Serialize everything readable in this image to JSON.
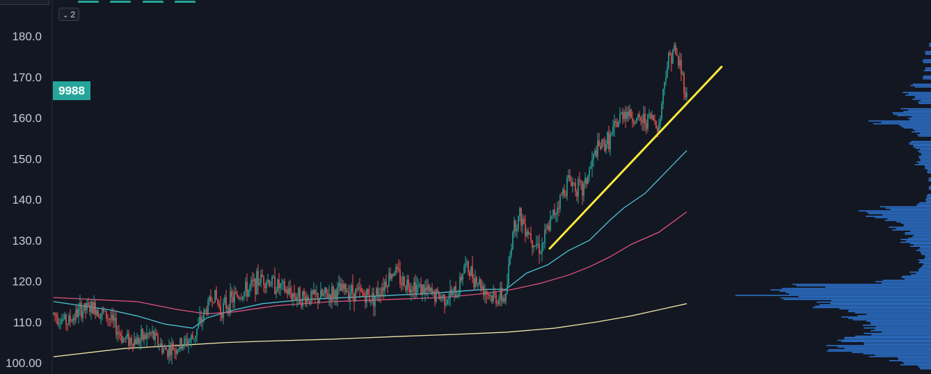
{
  "toolbar": {
    "collapse_count": "2",
    "collapse_icon": "chevron-down-icon"
  },
  "symbol_badge": {
    "label": "9988",
    "color": "#26a69a"
  },
  "chart_data": {
    "type": "line",
    "subtype": "candlestick",
    "ylim": [
      99,
      183
    ],
    "y_ticks": [
      "180.0",
      "170.0",
      "160.0",
      "150.0",
      "140.0",
      "130.0",
      "120.0",
      "110.0",
      "100.00"
    ],
    "y_tick_values": [
      180,
      170,
      160,
      150,
      140,
      130,
      120,
      110,
      100
    ],
    "grid": false,
    "background": "#131722",
    "up_color": "#26a69a",
    "down_color": "#ef5350",
    "anchors": [
      [
        0,
        112
      ],
      [
        20,
        110
      ],
      [
        40,
        113
      ],
      [
        60,
        113.5
      ],
      [
        80,
        111
      ],
      [
        100,
        106
      ],
      [
        120,
        105.5
      ],
      [
        140,
        107
      ],
      [
        160,
        103
      ],
      [
        180,
        104
      ],
      [
        200,
        106
      ],
      [
        230,
        117
      ],
      [
        240,
        113
      ],
      [
        260,
        116
      ],
      [
        280,
        118
      ],
      [
        300,
        121
      ],
      [
        320,
        119
      ],
      [
        340,
        117
      ],
      [
        360,
        116
      ],
      [
        380,
        116
      ],
      [
        400,
        117
      ],
      [
        420,
        118
      ],
      [
        440,
        117
      ],
      [
        460,
        116
      ],
      [
        490,
        123
      ],
      [
        500,
        120
      ],
      [
        520,
        119
      ],
      [
        540,
        117
      ],
      [
        560,
        116
      ],
      [
        580,
        117
      ],
      [
        590,
        124
      ],
      [
        610,
        120
      ],
      [
        630,
        116
      ],
      [
        650,
        116
      ],
      [
        660,
        133
      ],
      [
        670,
        136
      ],
      [
        690,
        130
      ],
      [
        700,
        128
      ],
      [
        720,
        137
      ],
      [
        740,
        145
      ],
      [
        760,
        142
      ],
      [
        780,
        152
      ],
      [
        800,
        155
      ],
      [
        820,
        162
      ],
      [
        840,
        159
      ],
      [
        860,
        160
      ],
      [
        870,
        158
      ],
      [
        880,
        172
      ],
      [
        890,
        177
      ],
      [
        900,
        173
      ],
      [
        910,
        165
      ]
    ],
    "series": [
      {
        "type": "ma",
        "color": "#4dc4d6",
        "points": [
          [
            0,
            115
          ],
          [
            40,
            114
          ],
          [
            80,
            113
          ],
          [
            120,
            111.5
          ],
          [
            160,
            109.5
          ],
          [
            200,
            108.5
          ],
          [
            220,
            111
          ],
          [
            260,
            113
          ],
          [
            300,
            114.5
          ],
          [
            360,
            115.5
          ],
          [
            420,
            116
          ],
          [
            480,
            116.5
          ],
          [
            540,
            117
          ],
          [
            580,
            117.5
          ],
          [
            620,
            118
          ],
          [
            650,
            118
          ],
          [
            680,
            122
          ],
          [
            710,
            124
          ],
          [
            740,
            127.5
          ],
          [
            770,
            130
          ],
          [
            800,
            135
          ],
          [
            820,
            138
          ],
          [
            850,
            141.5
          ],
          [
            870,
            145
          ],
          [
            890,
            148.5
          ],
          [
            910,
            152
          ]
        ]
      },
      {
        "type": "ma",
        "color": "#e0537e",
        "points": [
          [
            0,
            116
          ],
          [
            60,
            115.5
          ],
          [
            120,
            115
          ],
          [
            180,
            113
          ],
          [
            220,
            112
          ],
          [
            260,
            112.5
          ],
          [
            320,
            114
          ],
          [
            400,
            115
          ],
          [
            480,
            115.5
          ],
          [
            560,
            116
          ],
          [
            620,
            117
          ],
          [
            660,
            118
          ],
          [
            700,
            119.5
          ],
          [
            740,
            121.5
          ],
          [
            770,
            123.5
          ],
          [
            800,
            126
          ],
          [
            830,
            129
          ],
          [
            870,
            132
          ],
          [
            890,
            134.5
          ],
          [
            910,
            137
          ]
        ]
      },
      {
        "type": "ma",
        "color": "#f0e6a8",
        "points": [
          [
            0,
            101.5
          ],
          [
            100,
            103.5
          ],
          [
            200,
            104.5
          ],
          [
            250,
            105
          ],
          [
            300,
            105.3
          ],
          [
            400,
            105.8
          ],
          [
            500,
            106.5
          ],
          [
            580,
            107
          ],
          [
            650,
            107.5
          ],
          [
            720,
            108.5
          ],
          [
            780,
            110
          ],
          [
            830,
            111.5
          ],
          [
            870,
            113
          ],
          [
            910,
            114.5
          ]
        ]
      }
    ],
    "trendline": {
      "color": "#ffeb3b",
      "from": [
        713,
        128
      ],
      "to": [
        960,
        172.5
      ]
    },
    "volume_profile": {
      "color": "#2f7de1",
      "levels": [
        [
          178,
          3
        ],
        [
          176,
          8
        ],
        [
          174,
          12
        ],
        [
          172,
          10
        ],
        [
          170,
          14
        ],
        [
          168,
          28
        ],
        [
          166,
          40
        ],
        [
          165,
          25
        ],
        [
          164,
          18
        ],
        [
          162,
          40
        ],
        [
          161,
          60
        ],
        [
          160,
          35
        ],
        [
          159,
          90
        ],
        [
          158,
          45
        ],
        [
          157,
          28
        ],
        [
          156,
          20
        ],
        [
          154,
          30
        ],
        [
          153,
          25
        ],
        [
          152,
          20
        ],
        [
          151,
          18
        ],
        [
          150,
          16
        ],
        [
          149,
          22
        ],
        [
          148,
          10
        ],
        [
          147,
          6
        ],
        [
          145,
          4
        ],
        [
          143,
          3
        ],
        [
          141,
          6
        ],
        [
          140,
          8
        ],
        [
          139,
          20
        ],
        [
          138,
          70
        ],
        [
          137,
          100
        ],
        [
          136,
          85
        ],
        [
          135,
          60
        ],
        [
          134,
          45
        ],
        [
          133,
          55
        ],
        [
          132,
          35
        ],
        [
          131,
          30
        ],
        [
          130,
          45
        ],
        [
          129,
          30
        ],
        [
          128,
          20
        ],
        [
          127,
          15
        ],
        [
          126,
          10
        ],
        [
          125,
          18
        ],
        [
          124,
          14
        ],
        [
          123,
          20
        ],
        [
          122,
          28
        ],
        [
          121,
          40
        ],
        [
          120,
          80
        ],
        [
          119,
          180
        ],
        [
          118,
          220
        ],
        [
          117,
          260
        ],
        [
          116,
          200
        ],
        [
          115,
          150
        ],
        [
          114,
          170
        ],
        [
          113,
          120
        ],
        [
          112,
          100
        ],
        [
          111,
          130
        ],
        [
          110,
          110
        ],
        [
          109,
          90
        ],
        [
          108,
          80
        ],
        [
          107,
          100
        ],
        [
          106,
          140
        ],
        [
          105,
          120
        ],
        [
          104,
          160
        ],
        [
          103,
          140
        ],
        [
          102,
          90
        ],
        [
          101,
          60
        ],
        [
          100,
          40
        ],
        [
          99,
          20
        ]
      ]
    }
  }
}
